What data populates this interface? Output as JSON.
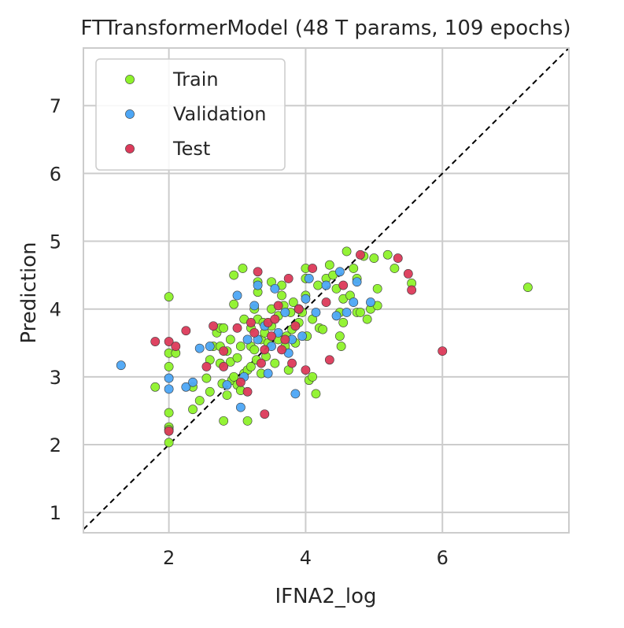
{
  "chart_data": {
    "type": "scatter",
    "title": "FTTransformerModel (48 T params, 109 epochs)",
    "xlabel": "IFNA2_log",
    "ylabel": "Prediction",
    "xlim": [
      0.75,
      7.85
    ],
    "ylim": [
      0.7,
      7.85
    ],
    "xticks": [
      "2",
      "4",
      "6"
    ],
    "xtick_values": [
      2,
      4,
      6
    ],
    "yticks": [
      "1",
      "2",
      "3",
      "4",
      "5",
      "6",
      "7"
    ],
    "ytick_values": [
      1,
      2,
      3,
      4,
      5,
      6,
      7
    ],
    "grid": true,
    "legend_position": "top-left",
    "reference_line": "y = x (dashed, black)",
    "series": [
      {
        "name": "Train",
        "color": "#8ef22b",
        "points": [
          [
            1.8,
            2.85
          ],
          [
            2.0,
            4.18
          ],
          [
            2.0,
            3.35
          ],
          [
            2.0,
            3.15
          ],
          [
            2.0,
            2.47
          ],
          [
            2.0,
            2.26
          ],
          [
            2.0,
            2.22
          ],
          [
            2.0,
            2.03
          ],
          [
            2.1,
            3.35
          ],
          [
            2.35,
            2.85
          ],
          [
            2.35,
            2.52
          ],
          [
            2.45,
            2.65
          ],
          [
            2.55,
            2.98
          ],
          [
            2.6,
            3.25
          ],
          [
            2.6,
            2.78
          ],
          [
            2.65,
            3.45
          ],
          [
            2.7,
            3.65
          ],
          [
            2.75,
            3.72
          ],
          [
            2.75,
            3.45
          ],
          [
            2.75,
            3.2
          ],
          [
            2.78,
            2.9
          ],
          [
            2.8,
            3.72
          ],
          [
            2.8,
            2.35
          ],
          [
            2.85,
            3.38
          ],
          [
            2.85,
            2.73
          ],
          [
            2.9,
            3.22
          ],
          [
            2.9,
            3.55
          ],
          [
            2.92,
            2.95
          ],
          [
            2.95,
            4.5
          ],
          [
            2.95,
            4.07
          ],
          [
            2.95,
            3.0
          ],
          [
            3.0,
            3.28
          ],
          [
            3.0,
            2.88
          ],
          [
            3.05,
            3.45
          ],
          [
            3.05,
            2.8
          ],
          [
            3.08,
            4.6
          ],
          [
            3.1,
            3.85
          ],
          [
            3.1,
            3.05
          ],
          [
            3.15,
            3.1
          ],
          [
            3.15,
            2.35
          ],
          [
            3.2,
            3.72
          ],
          [
            3.2,
            3.45
          ],
          [
            3.2,
            3.15
          ],
          [
            3.25,
            3.4
          ],
          [
            3.25,
            4.0
          ],
          [
            3.28,
            3.25
          ],
          [
            3.3,
            4.4
          ],
          [
            3.3,
            4.25
          ],
          [
            3.3,
            3.85
          ],
          [
            3.35,
            3.55
          ],
          [
            3.35,
            3.05
          ],
          [
            3.38,
            3.8
          ],
          [
            3.4,
            3.65
          ],
          [
            3.42,
            3.3
          ],
          [
            3.45,
            3.5
          ],
          [
            3.5,
            4.0
          ],
          [
            3.5,
            3.75
          ],
          [
            3.5,
            4.4
          ],
          [
            3.55,
            3.2
          ],
          [
            3.6,
            3.9
          ],
          [
            3.6,
            3.55
          ],
          [
            3.65,
            4.2
          ],
          [
            3.65,
            4.35
          ],
          [
            3.68,
            4.05
          ],
          [
            3.7,
            3.45
          ],
          [
            3.72,
            3.6
          ],
          [
            3.75,
            3.1
          ],
          [
            3.78,
            3.95
          ],
          [
            3.8,
            3.7
          ],
          [
            3.82,
            4.1
          ],
          [
            3.85,
            3.5
          ],
          [
            3.9,
            4.0
          ],
          [
            3.9,
            3.8
          ],
          [
            3.95,
            3.95
          ],
          [
            4.0,
            4.6
          ],
          [
            4.0,
            4.45
          ],
          [
            4.0,
            4.2
          ],
          [
            4.02,
            3.6
          ],
          [
            4.05,
            2.95
          ],
          [
            4.1,
            3.0
          ],
          [
            4.1,
            3.85
          ],
          [
            4.15,
            2.75
          ],
          [
            4.18,
            4.35
          ],
          [
            4.2,
            3.72
          ],
          [
            4.25,
            3.7
          ],
          [
            4.3,
            4.45
          ],
          [
            4.35,
            4.65
          ],
          [
            4.4,
            4.5
          ],
          [
            4.45,
            4.3
          ],
          [
            4.5,
            3.95
          ],
          [
            4.5,
            3.6
          ],
          [
            4.52,
            3.45
          ],
          [
            4.55,
            3.8
          ],
          [
            4.55,
            4.15
          ],
          [
            4.6,
            4.85
          ],
          [
            4.65,
            4.2
          ],
          [
            4.7,
            4.6
          ],
          [
            4.75,
            4.45
          ],
          [
            4.75,
            3.95
          ],
          [
            4.8,
            3.95
          ],
          [
            4.85,
            4.78
          ],
          [
            4.9,
            3.85
          ],
          [
            4.95,
            4.0
          ],
          [
            5.0,
            4.75
          ],
          [
            5.05,
            4.3
          ],
          [
            5.05,
            4.05
          ],
          [
            5.2,
            4.8
          ],
          [
            5.3,
            4.6
          ],
          [
            5.55,
            4.38
          ],
          [
            7.25,
            4.32
          ]
        ]
      },
      {
        "name": "Validation",
        "color": "#4da6f5",
        "points": [
          [
            1.3,
            3.17
          ],
          [
            2.0,
            2.98
          ],
          [
            2.0,
            2.82
          ],
          [
            2.25,
            2.85
          ],
          [
            2.35,
            2.92
          ],
          [
            2.45,
            3.42
          ],
          [
            2.6,
            3.45
          ],
          [
            2.85,
            2.88
          ],
          [
            3.0,
            4.2
          ],
          [
            3.05,
            2.55
          ],
          [
            3.1,
            3.0
          ],
          [
            3.15,
            3.55
          ],
          [
            3.25,
            4.05
          ],
          [
            3.3,
            4.35
          ],
          [
            3.3,
            3.55
          ],
          [
            3.4,
            3.75
          ],
          [
            3.45,
            3.05
          ],
          [
            3.5,
            3.45
          ],
          [
            3.55,
            4.3
          ],
          [
            3.6,
            3.65
          ],
          [
            3.7,
            3.95
          ],
          [
            3.75,
            3.35
          ],
          [
            3.8,
            3.55
          ],
          [
            3.85,
            2.75
          ],
          [
            3.9,
            4.0
          ],
          [
            3.95,
            3.6
          ],
          [
            4.0,
            4.15
          ],
          [
            4.05,
            4.45
          ],
          [
            4.15,
            3.95
          ],
          [
            4.3,
            4.35
          ],
          [
            4.45,
            3.9
          ],
          [
            4.5,
            4.55
          ],
          [
            4.6,
            3.95
          ],
          [
            4.7,
            4.1
          ],
          [
            4.75,
            4.4
          ],
          [
            4.95,
            4.1
          ]
        ]
      },
      {
        "name": "Test",
        "color": "#dc3a5a",
        "points": [
          [
            1.8,
            3.52
          ],
          [
            2.0,
            3.52
          ],
          [
            2.0,
            2.2
          ],
          [
            2.1,
            3.45
          ],
          [
            2.25,
            3.68
          ],
          [
            2.55,
            3.15
          ],
          [
            2.65,
            3.75
          ],
          [
            2.8,
            3.38
          ],
          [
            2.8,
            3.15
          ],
          [
            3.0,
            3.72
          ],
          [
            3.05,
            2.92
          ],
          [
            3.15,
            2.78
          ],
          [
            3.2,
            3.8
          ],
          [
            3.25,
            3.65
          ],
          [
            3.3,
            4.55
          ],
          [
            3.35,
            3.2
          ],
          [
            3.4,
            3.4
          ],
          [
            3.45,
            3.8
          ],
          [
            3.4,
            2.45
          ],
          [
            3.5,
            3.6
          ],
          [
            3.55,
            3.85
          ],
          [
            3.6,
            4.05
          ],
          [
            3.65,
            3.4
          ],
          [
            3.7,
            3.55
          ],
          [
            3.75,
            4.45
          ],
          [
            3.8,
            3.2
          ],
          [
            3.85,
            3.75
          ],
          [
            3.9,
            4.0
          ],
          [
            4.0,
            3.1
          ],
          [
            4.1,
            4.6
          ],
          [
            4.3,
            4.1
          ],
          [
            4.35,
            3.25
          ],
          [
            4.55,
            4.35
          ],
          [
            4.8,
            4.8
          ],
          [
            5.35,
            4.75
          ],
          [
            5.5,
            4.52
          ],
          [
            5.55,
            4.28
          ],
          [
            6.0,
            3.38
          ]
        ]
      }
    ]
  }
}
